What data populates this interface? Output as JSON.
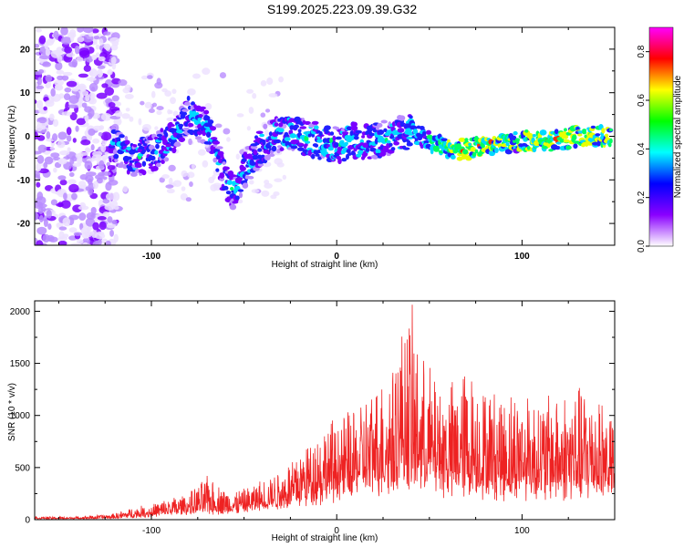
{
  "title": "S199.2025.223.09.39.G32",
  "colors": {
    "snr_line": "#ee2222",
    "axes": "#000000",
    "colorbar": [
      "#ffffff",
      "#8a00ff",
      "#0000ff",
      "#00ffff",
      "#00ff00",
      "#ffff00",
      "#ff0000",
      "#ff00ff"
    ]
  },
  "chart_data": [
    {
      "type": "heatmap",
      "name": "spectrogram",
      "xlabel": "Height of straight line (km)",
      "ylabel": "Frequency (Hz)",
      "xlim": [
        -163,
        150
      ],
      "ylim": [
        -25,
        25
      ],
      "xticks": [
        -100,
        0,
        100
      ],
      "xtick_labels": [
        "-100",
        "0",
        "100"
      ],
      "yticks": [
        -20,
        -10,
        0,
        10,
        20
      ],
      "ytick_labels": [
        "-20",
        "-10",
        "0",
        "10",
        "20"
      ],
      "ridge": {
        "description": "dominant frequency track (Hz) vs height (km)",
        "x": [
          -120,
          -110,
          -100,
          -90,
          -80,
          -70,
          -60,
          -55,
          -50,
          -45,
          -40,
          -30,
          -20,
          -10,
          0,
          10,
          20,
          30,
          40,
          50,
          60,
          70,
          80,
          90,
          100,
          110,
          120,
          130,
          140,
          147
        ],
        "y": [
          -2,
          -5,
          -4,
          -1,
          5,
          2,
          -10,
          -13,
          -8,
          -5,
          -2,
          1,
          0,
          -1,
          -2,
          -1,
          -1,
          0,
          1,
          -1,
          -3,
          -3,
          -2,
          -2,
          -1,
          -1,
          -1,
          0,
          0,
          0
        ]
      },
      "colorbar": {
        "label": "Normalized spectral amplitude",
        "range": [
          0.0,
          0.9
        ],
        "ticks": [
          0.0,
          0.2,
          0.4,
          0.6,
          0.8
        ],
        "tick_labels": [
          "0.0",
          "0.2",
          "0.4",
          "0.6",
          "0.8"
        ]
      }
    },
    {
      "type": "line",
      "name": "snr",
      "xlabel": "Height of straight line (km)",
      "ylabel": "SNR (10 * v/v)",
      "xlim": [
        -163,
        150
      ],
      "ylim": [
        0,
        2100
      ],
      "xticks": [
        -100,
        0,
        100
      ],
      "xtick_labels": [
        "-100",
        "0",
        "100"
      ],
      "yticks": [
        0,
        500,
        1000,
        1500,
        2000
      ],
      "ytick_labels": [
        "0",
        "500",
        "1000",
        "1500",
        "2000"
      ],
      "envelope": {
        "x": [
          -163,
          -140,
          -120,
          -110,
          -100,
          -90,
          -80,
          -70,
          -60,
          -50,
          -40,
          -30,
          -20,
          -10,
          0,
          10,
          20,
          30,
          35,
          40,
          45,
          50,
          60,
          70,
          80,
          90,
          100,
          110,
          120,
          130,
          140,
          150
        ],
        "baseline": [
          10,
          10,
          15,
          30,
          40,
          60,
          80,
          90,
          80,
          100,
          130,
          170,
          220,
          260,
          300,
          350,
          400,
          450,
          480,
          450,
          420,
          420,
          380,
          360,
          350,
          340,
          330,
          330,
          330,
          330,
          330,
          330
        ],
        "peak": [
          30,
          30,
          60,
          120,
          150,
          220,
          250,
          420,
          300,
          300,
          400,
          500,
          700,
          900,
          1000,
          1100,
          1300,
          1550,
          1900,
          2100,
          1600,
          1500,
          1300,
          1500,
          1300,
          1250,
          1300,
          1200,
          1250,
          1300,
          1350,
          1000
        ]
      }
    }
  ]
}
